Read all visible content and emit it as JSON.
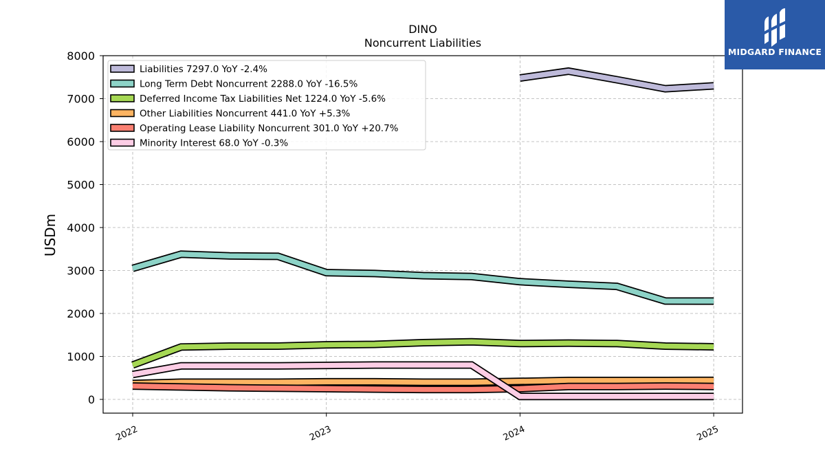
{
  "brand": {
    "name": "MIDGARD FINANCE",
    "bg_color": "#2a5aa8",
    "icon": "midgard-logo-icon"
  },
  "chart_data": {
    "type": "line",
    "title": "DINO",
    "subtitle": "Noncurrent  Liabilities",
    "xlabel": "",
    "ylabel": "USDm",
    "xlim": [
      2021.85,
      2025.15
    ],
    "ylim": [
      -300,
      8000
    ],
    "yticks": [
      0,
      1000,
      2000,
      3000,
      4000,
      5000,
      6000,
      7000,
      8000
    ],
    "xticks": [
      "2022",
      "2023",
      "2024",
      "2025"
    ],
    "grid": true,
    "legend_position": "top-left",
    "series": [
      {
        "name": "Liabilities",
        "legend": "Liabilities  7297.0 YoY -2.4%",
        "color": "#bebada",
        "x": [
          2024.0,
          2024.25,
          2024.5,
          2024.75,
          2025.0
        ],
        "y": [
          7480,
          7640,
          7440,
          7230,
          7297
        ]
      },
      {
        "name": "Long Term Debt Noncurrent",
        "legend": "Long Term Debt Noncurrent  2288.0 YoY -16.5%",
        "color": "#8dd3c7",
        "x": [
          2022.0,
          2022.25,
          2022.5,
          2022.75,
          2023.0,
          2023.25,
          2023.5,
          2023.75,
          2024.0,
          2024.25,
          2024.5,
          2024.75,
          2025.0
        ],
        "y": [
          3050,
          3380,
          3340,
          3330,
          2950,
          2930,
          2880,
          2860,
          2740,
          2680,
          2630,
          2290,
          2288
        ]
      },
      {
        "name": "Deferred Income Tax Liabilities Net",
        "legend": "Deferred Income Tax Liabilities Net  1224.0 YoY -5.6%",
        "color": "#a6d854",
        "x": [
          2022.0,
          2022.25,
          2022.5,
          2022.75,
          2023.0,
          2023.25,
          2023.5,
          2023.75,
          2024.0,
          2024.25,
          2024.5,
          2024.75,
          2025.0
        ],
        "y": [
          800,
          1220,
          1240,
          1240,
          1270,
          1280,
          1320,
          1340,
          1300,
          1310,
          1300,
          1240,
          1224
        ]
      },
      {
        "name": "Other Liabilities Noncurrent",
        "legend": "Other Liabilities Noncurrent  441.0 YoY +5.3%",
        "color": "#fdb462",
        "x": [
          2022.0,
          2022.25,
          2022.5,
          2022.75,
          2023.0,
          2023.25,
          2023.5,
          2023.75,
          2024.0,
          2024.25,
          2024.5,
          2024.75,
          2025.0
        ],
        "y": [
          370,
          400,
          400,
          400,
          410,
          410,
          400,
          400,
          420,
          440,
          440,
          440,
          441
        ]
      },
      {
        "name": "Operating Lease Liability Noncurrent",
        "legend": "Operating Lease Liability Noncurrent  301.0 YoY +20.7%",
        "color": "#fb8072",
        "x": [
          2022.0,
          2022.25,
          2022.5,
          2022.75,
          2023.0,
          2023.25,
          2023.5,
          2023.75,
          2024.0,
          2024.25,
          2024.5,
          2024.75,
          2025.0
        ],
        "y": [
          310,
          290,
          270,
          260,
          250,
          240,
          230,
          230,
          250,
          300,
          300,
          310,
          301
        ]
      },
      {
        "name": "Minority Interest",
        "legend": "Minority Interest  68.0 YoY -0.3%",
        "color": "#fccde5",
        "x": [
          2022.0,
          2022.25,
          2022.5,
          2022.75,
          2023.0,
          2023.25,
          2023.5,
          2023.75,
          2024.0,
          2024.25,
          2024.5,
          2024.75,
          2025.0
        ],
        "y": [
          580,
          780,
          780,
          780,
          790,
          800,
          800,
          800,
          68,
          68,
          68,
          68,
          68
        ]
      }
    ]
  }
}
